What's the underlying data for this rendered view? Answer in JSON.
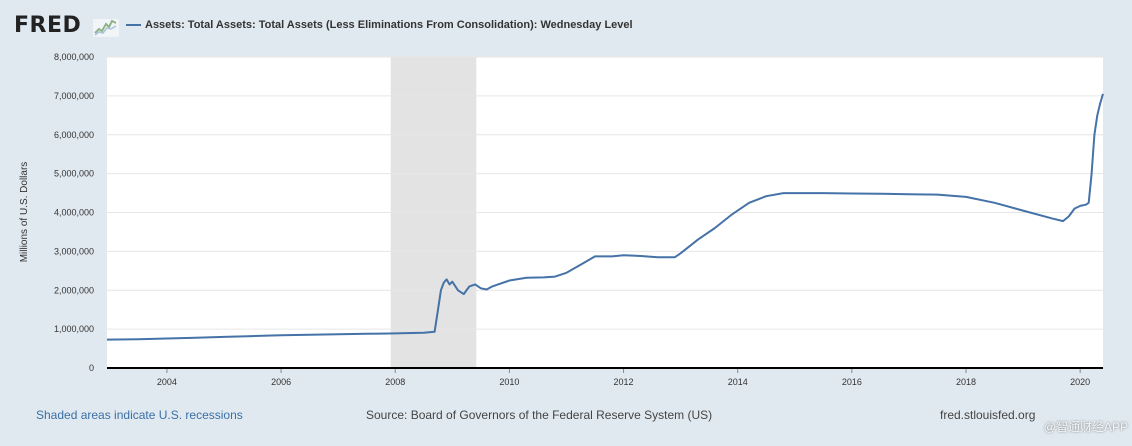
{
  "header": {
    "logo_text": "FRED",
    "logo_icon": "sparkline-icon",
    "legend_label": "Assets: Total Assets: Total Assets (Less Eliminations From Consolidation): Wednesday Level"
  },
  "colors": {
    "series": "#4572a7",
    "recession": "#e3e3e3",
    "background": "#e1e9f0",
    "plot": "#ffffff"
  },
  "chart_data": {
    "type": "line",
    "title": "Assets: Total Assets: Total Assets (Less Eliminations From Consolidation): Wednesday Level",
    "xlabel": "",
    "ylabel": "Millions of U.S. Dollars",
    "xlim": [
      2002.95,
      2020.4
    ],
    "ylim": [
      0,
      8000000
    ],
    "x_ticks": [
      2004,
      2006,
      2008,
      2010,
      2012,
      2014,
      2016,
      2018,
      2020
    ],
    "x_tick_labels": [
      "2004",
      "2006",
      "2008",
      "2010",
      "2012",
      "2014",
      "2016",
      "2018",
      "2020"
    ],
    "y_ticks": [
      0,
      1000000,
      2000000,
      3000000,
      4000000,
      5000000,
      6000000,
      7000000,
      8000000
    ],
    "y_tick_labels": [
      "0",
      "1,000,000",
      "2,000,000",
      "3,000,000",
      "4,000,000",
      "5,000,000",
      "6,000,000",
      "7,000,000",
      "8,000,000"
    ],
    "grid": true,
    "recessions": [
      {
        "start": 2007.92,
        "end": 2009.42
      }
    ],
    "series": [
      {
        "name": "Assets: Total Assets: Total Assets (Less Eliminations From Consolidation): Wednesday Level",
        "x": [
          2002.95,
          2003.5,
          2004.0,
          2004.5,
          2005.0,
          2005.5,
          2006.0,
          2006.5,
          2007.0,
          2007.5,
          2008.0,
          2008.5,
          2008.69,
          2008.75,
          2008.8,
          2008.85,
          2008.9,
          2008.95,
          2009.0,
          2009.1,
          2009.2,
          2009.3,
          2009.4,
          2009.5,
          2009.6,
          2009.7,
          2009.8,
          2009.9,
          2010.0,
          2010.3,
          2010.6,
          2010.8,
          2011.0,
          2011.3,
          2011.5,
          2011.8,
          2012.0,
          2012.3,
          2012.6,
          2012.9,
          2013.0,
          2013.3,
          2013.6,
          2013.9,
          2014.2,
          2014.5,
          2014.8,
          2015.0,
          2015.5,
          2016.0,
          2016.5,
          2017.0,
          2017.5,
          2018.0,
          2018.5,
          2019.0,
          2019.5,
          2019.7,
          2019.8,
          2019.9,
          2020.0,
          2020.1,
          2020.15,
          2020.2,
          2020.25,
          2020.3,
          2020.35,
          2020.4
        ],
        "values": [
          730000,
          740000,
          760000,
          780000,
          800000,
          820000,
          840000,
          855000,
          870000,
          880000,
          890000,
          905000,
          930000,
          1500000,
          2000000,
          2200000,
          2280000,
          2150000,
          2220000,
          2000000,
          1900000,
          2100000,
          2150000,
          2050000,
          2020000,
          2100000,
          2150000,
          2200000,
          2250000,
          2320000,
          2330000,
          2350000,
          2450000,
          2700000,
          2870000,
          2870000,
          2900000,
          2880000,
          2850000,
          2850000,
          2950000,
          3300000,
          3600000,
          3950000,
          4250000,
          4420000,
          4500000,
          4500000,
          4500000,
          4490000,
          4480000,
          4470000,
          4460000,
          4400000,
          4250000,
          4050000,
          3850000,
          3780000,
          3900000,
          4100000,
          4170000,
          4200000,
          4250000,
          5000000,
          6000000,
          6500000,
          6800000,
          7050000
        ]
      }
    ]
  },
  "footer": {
    "recession_note": "Shaded areas indicate U.S. recessions",
    "source": "Source: Board of Governors of the Federal Reserve System (US)",
    "site": "fred.stlouisfed.org"
  },
  "watermark": "@智通财经APP"
}
